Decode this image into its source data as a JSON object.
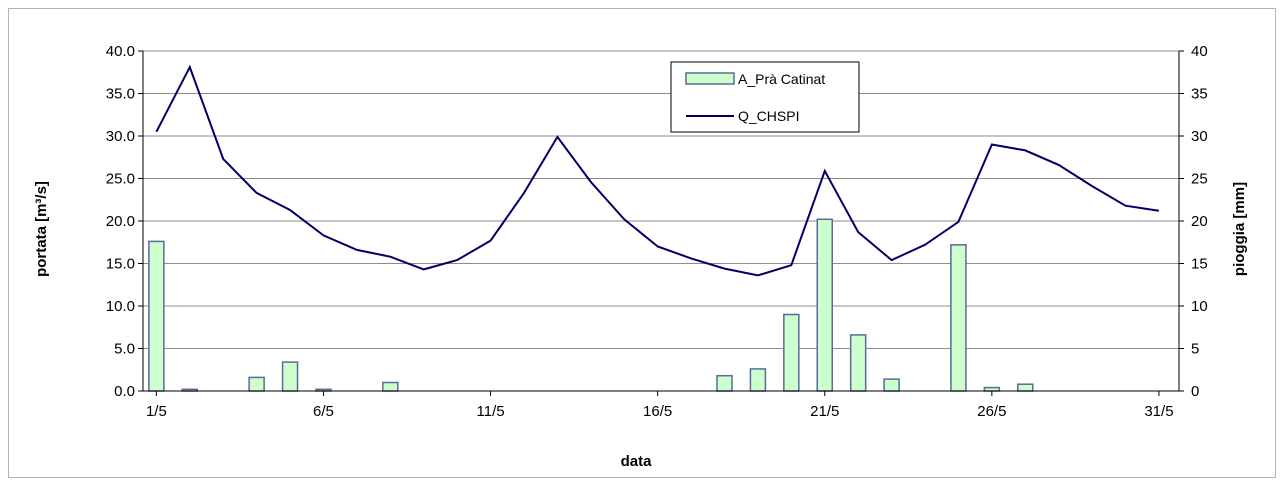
{
  "chart_data": {
    "type": "bar+line",
    "xlabel": "data",
    "ylabel_left": "portata [m³/s]",
    "ylabel_right": "pioggia [mm]",
    "ylim_left": [
      0,
      40
    ],
    "ylim_right": [
      0,
      40
    ],
    "yticks_left": [
      "0.0",
      "5.0",
      "10.0",
      "15.0",
      "20.0",
      "25.0",
      "30.0",
      "35.0",
      "40.0"
    ],
    "yticks_right": [
      "0",
      "5",
      "10",
      "15",
      "20",
      "25",
      "30",
      "35",
      "40"
    ],
    "xticks": [
      {
        "day": 1,
        "label": "1/5"
      },
      {
        "day": 6,
        "label": "6/5"
      },
      {
        "day": 11,
        "label": "11/5"
      },
      {
        "day": 16,
        "label": "16/5"
      },
      {
        "day": 21,
        "label": "21/5"
      },
      {
        "day": 26,
        "label": "26/5"
      },
      {
        "day": 31,
        "label": "31/5"
      }
    ],
    "grid": "horizontal",
    "legend_position": "top-center",
    "series": [
      {
        "name": "A_Prà Catinat",
        "kind": "bar",
        "axis": "right",
        "color": "#ccffcc",
        "edge_color": "#5a6a9a",
        "x": [
          1,
          2,
          3,
          4,
          5,
          6,
          7,
          8,
          9,
          10,
          11,
          12,
          13,
          14,
          15,
          16,
          17,
          18,
          19,
          20,
          21,
          22,
          23,
          24,
          25,
          26,
          27,
          28,
          29,
          30,
          31
        ],
        "values": [
          17.6,
          0.2,
          0,
          1.6,
          3.4,
          0.2,
          0,
          1.0,
          0,
          0,
          0,
          0,
          0,
          0,
          0,
          0,
          0,
          1.8,
          2.6,
          9.0,
          20.2,
          6.6,
          1.4,
          0,
          17.2,
          0.4,
          0.8,
          0,
          0,
          0,
          0
        ]
      },
      {
        "name": "Q_CHSPI",
        "kind": "line",
        "axis": "left",
        "color": "#000066",
        "x": [
          1,
          2,
          3,
          4,
          5,
          6,
          7,
          8,
          9,
          10,
          11,
          12,
          13,
          14,
          15,
          16,
          17,
          18,
          19,
          20,
          21,
          22,
          23,
          24,
          25,
          26,
          27,
          28,
          29,
          30,
          31
        ],
        "values": [
          30.5,
          38.1,
          27.3,
          23.3,
          21.3,
          18.3,
          16.6,
          15.8,
          14.3,
          15.4,
          17.7,
          23.3,
          29.9,
          24.6,
          20.2,
          17.0,
          15.6,
          14.4,
          13.6,
          14.8,
          25.9,
          18.7,
          15.4,
          17.2,
          19.9,
          29.0,
          28.3,
          26.6,
          24.1,
          21.8,
          21.2
        ]
      }
    ]
  }
}
